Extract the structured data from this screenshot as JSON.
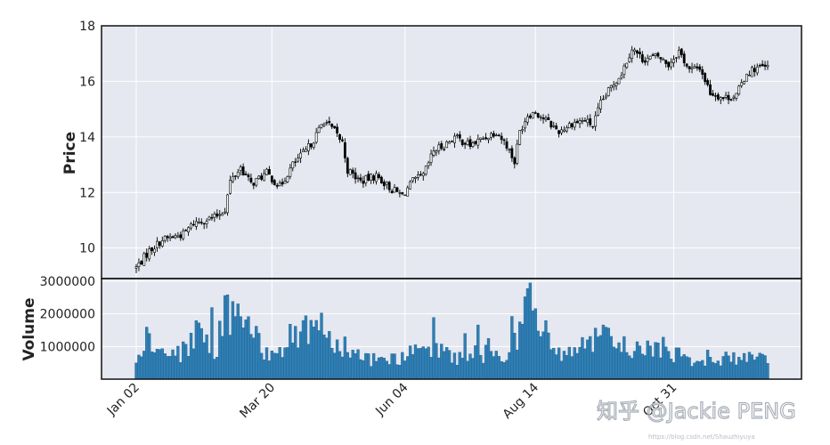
{
  "chart_data": {
    "type": "candlestick",
    "panels": [
      {
        "name": "price",
        "ylabel": "Price",
        "ylim": [
          8.9,
          18
        ],
        "yticks": [
          10,
          12,
          14,
          16,
          18
        ]
      },
      {
        "name": "volume",
        "ylabel": "Volume",
        "ylim": [
          0,
          3000000
        ],
        "yticks": [
          1000000,
          2000000,
          3000000
        ],
        "ytick_labels": [
          "1000000",
          "2000000",
          "3000000"
        ]
      }
    ],
    "x_tick_labels": [
      "Jan 02",
      "Mar 20",
      "Jun 04",
      "Aug 14",
      "Oct 31"
    ],
    "x_tick_index": [
      0,
      52,
      103,
      153,
      206
    ],
    "grid": true,
    "bar_count": 243,
    "colors": {
      "panel_bg": "#e5e8f0",
      "grid": "#ffffff",
      "candle": "#000000",
      "volume": "#2f7fb4",
      "volume_edge": "#1f5f8f"
    },
    "close_trend": [
      {
        "i": 0,
        "close": 9.3
      },
      {
        "i": 5,
        "close": 9.9
      },
      {
        "i": 10,
        "close": 10.3
      },
      {
        "i": 18,
        "close": 10.5
      },
      {
        "i": 22,
        "close": 10.9
      },
      {
        "i": 30,
        "close": 11.1
      },
      {
        "i": 34,
        "close": 11.4
      },
      {
        "i": 36,
        "close": 12.4
      },
      {
        "i": 40,
        "close": 12.9
      },
      {
        "i": 44,
        "close": 12.3
      },
      {
        "i": 50,
        "close": 12.7
      },
      {
        "i": 55,
        "close": 12.2
      },
      {
        "i": 60,
        "close": 13.0
      },
      {
        "i": 65,
        "close": 13.5
      },
      {
        "i": 68,
        "close": 13.9
      },
      {
        "i": 72,
        "close": 14.6
      },
      {
        "i": 76,
        "close": 14.2
      },
      {
        "i": 79,
        "close": 13.8
      },
      {
        "i": 81,
        "close": 12.8
      },
      {
        "i": 86,
        "close": 12.4
      },
      {
        "i": 92,
        "close": 12.6
      },
      {
        "i": 98,
        "close": 12.1
      },
      {
        "i": 102,
        "close": 11.9
      },
      {
        "i": 106,
        "close": 12.4
      },
      {
        "i": 110,
        "close": 12.6
      },
      {
        "i": 114,
        "close": 13.5
      },
      {
        "i": 118,
        "close": 13.7
      },
      {
        "i": 122,
        "close": 14.0
      },
      {
        "i": 128,
        "close": 13.7
      },
      {
        "i": 132,
        "close": 13.9
      },
      {
        "i": 138,
        "close": 14.2
      },
      {
        "i": 142,
        "close": 13.7
      },
      {
        "i": 145,
        "close": 13.1
      },
      {
        "i": 147,
        "close": 14.2
      },
      {
        "i": 150,
        "close": 14.8
      },
      {
        "i": 153,
        "close": 14.9
      },
      {
        "i": 157,
        "close": 14.6
      },
      {
        "i": 162,
        "close": 14.2
      },
      {
        "i": 167,
        "close": 14.5
      },
      {
        "i": 172,
        "close": 14.6
      },
      {
        "i": 175,
        "close": 14.4
      },
      {
        "i": 178,
        "close": 15.2
      },
      {
        "i": 182,
        "close": 15.8
      },
      {
        "i": 186,
        "close": 16.3
      },
      {
        "i": 190,
        "close": 17.2
      },
      {
        "i": 194,
        "close": 16.8
      },
      {
        "i": 200,
        "close": 16.9
      },
      {
        "i": 204,
        "close": 16.6
      },
      {
        "i": 208,
        "close": 17.1
      },
      {
        "i": 212,
        "close": 16.4
      },
      {
        "i": 216,
        "close": 16.5
      },
      {
        "i": 220,
        "close": 15.6
      },
      {
        "i": 225,
        "close": 15.4
      },
      {
        "i": 230,
        "close": 15.5
      },
      {
        "i": 234,
        "close": 16.3
      },
      {
        "i": 238,
        "close": 16.5
      },
      {
        "i": 242,
        "close": 16.5
      }
    ],
    "volume_profile": [
      {
        "i": 0,
        "v": 500000
      },
      {
        "i": 3,
        "v": 1400000
      },
      {
        "i": 6,
        "v": 1100000
      },
      {
        "i": 12,
        "v": 700000
      },
      {
        "i": 20,
        "v": 1000000
      },
      {
        "i": 24,
        "v": 1900000
      },
      {
        "i": 30,
        "v": 1000000
      },
      {
        "i": 37,
        "v": 2600000
      },
      {
        "i": 42,
        "v": 1700000
      },
      {
        "i": 50,
        "v": 900000
      },
      {
        "i": 56,
        "v": 1200000
      },
      {
        "i": 62,
        "v": 1500000
      },
      {
        "i": 68,
        "v": 2000000
      },
      {
        "i": 73,
        "v": 1400000
      },
      {
        "i": 78,
        "v": 1300000
      },
      {
        "i": 86,
        "v": 800000
      },
      {
        "i": 95,
        "v": 600000
      },
      {
        "i": 103,
        "v": 800000
      },
      {
        "i": 110,
        "v": 900000
      },
      {
        "i": 117,
        "v": 1000000
      },
      {
        "i": 125,
        "v": 700000
      },
      {
        "i": 132,
        "v": 900000
      },
      {
        "i": 140,
        "v": 800000
      },
      {
        "i": 147,
        "v": 1500000
      },
      {
        "i": 150,
        "v": 2400000
      },
      {
        "i": 155,
        "v": 1800000
      },
      {
        "i": 160,
        "v": 1000000
      },
      {
        "i": 167,
        "v": 900000
      },
      {
        "i": 174,
        "v": 1200000
      },
      {
        "i": 180,
        "v": 1400000
      },
      {
        "i": 186,
        "v": 1100000
      },
      {
        "i": 194,
        "v": 1000000
      },
      {
        "i": 200,
        "v": 1100000
      },
      {
        "i": 206,
        "v": 900000
      },
      {
        "i": 212,
        "v": 700000
      },
      {
        "i": 220,
        "v": 600000
      },
      {
        "i": 228,
        "v": 700000
      },
      {
        "i": 235,
        "v": 800000
      },
      {
        "i": 242,
        "v": 700000
      }
    ]
  },
  "watermark": {
    "text": "知乎 @Jackie PENG",
    "url_text": "https://blog.csdn.net/Shauzhiyuya"
  }
}
